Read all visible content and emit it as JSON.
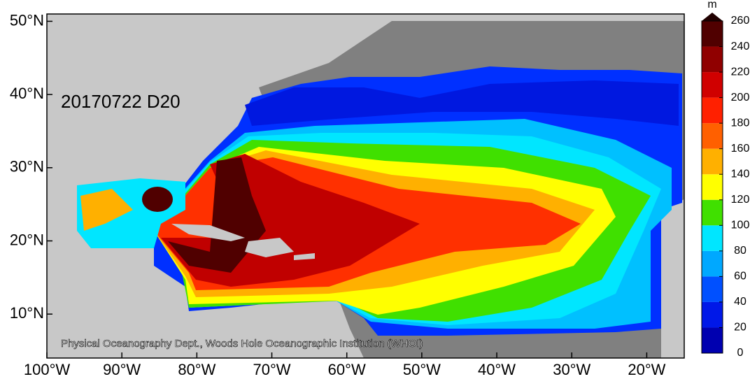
{
  "map": {
    "date_label": "20170722 D20",
    "credit": "Physical Oceanography Dept., Woods Hole Oceanographic Institution (WHOI)",
    "xlim": [
      -100,
      -15
    ],
    "ylim": [
      4,
      51
    ],
    "xticks": [
      {
        "value": -100,
        "label": "100°W"
      },
      {
        "value": -90,
        "label": "90°W"
      },
      {
        "value": -80,
        "label": "80°W"
      },
      {
        "value": -70,
        "label": "70°W"
      },
      {
        "value": -60,
        "label": "60°W"
      },
      {
        "value": -50,
        "label": "50°W"
      },
      {
        "value": -40,
        "label": "40°W"
      },
      {
        "value": -30,
        "label": "30°W"
      },
      {
        "value": -20,
        "label": "20°W"
      }
    ],
    "yticks": [
      {
        "value": 10,
        "label": "10°N"
      },
      {
        "value": 20,
        "label": "20°N"
      },
      {
        "value": 30,
        "label": "30°N"
      },
      {
        "value": 40,
        "label": "40°N"
      },
      {
        "value": 50,
        "label": "50°N"
      }
    ]
  },
  "colorbar": {
    "unit": "m",
    "ticks": [
      0,
      20,
      40,
      60,
      80,
      100,
      120,
      140,
      160,
      180,
      200,
      220,
      240,
      260
    ],
    "colors": [
      "#0000b0",
      "#0018e8",
      "#0050ff",
      "#00a8ff",
      "#00e6ff",
      "#40e000",
      "#ffff00",
      "#ffb000",
      "#ff6000",
      "#ff2000",
      "#d00000",
      "#900000",
      "#500000"
    ],
    "extend_color": "#200000"
  }
}
